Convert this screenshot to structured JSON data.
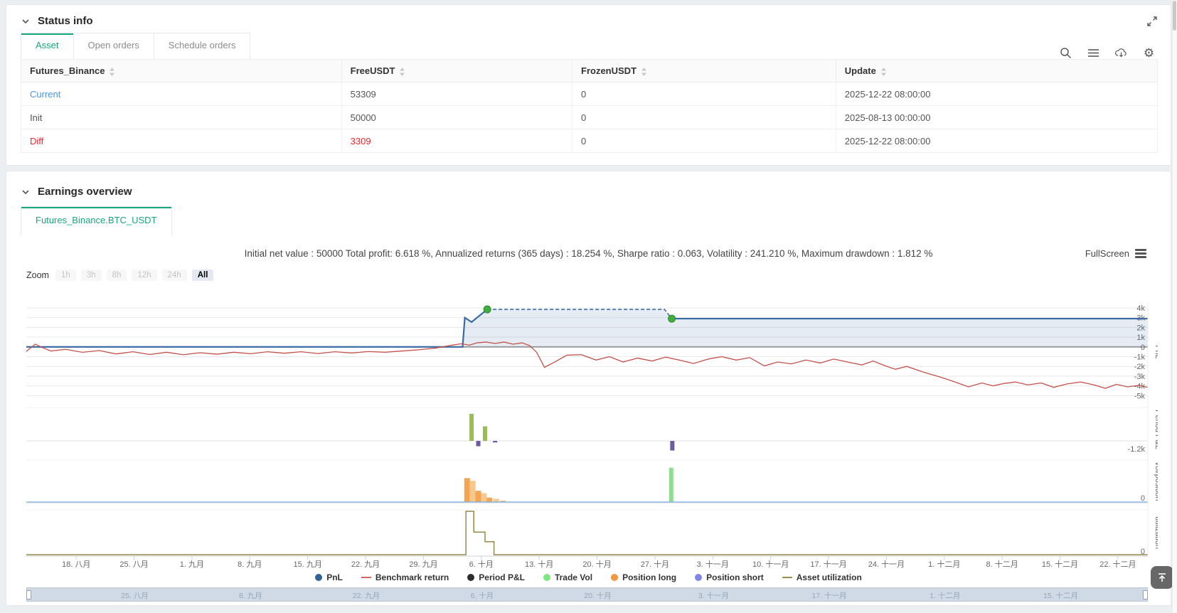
{
  "colors": {
    "accent_green": "#1aa47e",
    "link_blue": "#4a94e8",
    "alert_red": "#f5222d",
    "pnl_blue": "#3a6ba5",
    "pnl_fill": "rgba(58,107,165,0.13)",
    "benchmark_red": "#c4504a",
    "period_green": "#9bbb59",
    "period_purple": "#6e5aa0",
    "vol_orange": "#f2a654",
    "vol_orange_light": "#f7c78e",
    "trade_vol_green": "#8ce08c",
    "position_short_line": "#7cb5ec",
    "utilization_olive": "#948a4a",
    "marker_green": "#3fae3f",
    "navigator_bg": "#cfdae6"
  },
  "status_card": {
    "title": "Status info",
    "tabs": [
      {
        "label": "Asset"
      },
      {
        "label": "Open orders"
      },
      {
        "label": "Schedule orders"
      }
    ],
    "active_tab": "Asset",
    "toolbar_icons": [
      "search-icon",
      "menu-icon",
      "cloud-download-icon",
      "gear-icon"
    ],
    "table": {
      "columns": [
        "Futures_Binance",
        "FreeUSDT",
        "FrozenUSDT",
        "Update"
      ],
      "rows": [
        {
          "label": "Current",
          "free_usdt": "53309",
          "frozen_usdt": "0",
          "update": "2025-12-22 08:00:00"
        },
        {
          "label": "Init",
          "free_usdt": "50000",
          "frozen_usdt": "0",
          "update": "2025-08-13 00:00:00"
        },
        {
          "label": "Diff",
          "free_usdt": "3309",
          "frozen_usdt": "0",
          "update": "2025-12-22 08:00:00"
        }
      ]
    }
  },
  "earnings_card": {
    "title": "Earnings overview",
    "tab_label": "Futures_Binance.BTC_USDT",
    "stats_line": "Initial net value : 50000 Total profit: 6.618 %, Annualized returns (365 days) : 18.254 %, Sharpe ratio : 0.063, Volatility : 241.210 %, Maximum drawdown : 1.812 %",
    "fullscreen_label": "FullScreen",
    "zoom_label": "Zoom",
    "zoom_options": [
      "1h",
      "3h",
      "8h",
      "12h",
      "24h",
      "All"
    ],
    "zoom_active": "All"
  },
  "chart_data": {
    "type": "multi-panel time-series (line + area + bar + step), Highcharts-style with shared x axis",
    "x_axis": {
      "labels": [
        "18. 八月",
        "25. 八月",
        "1. 九月",
        "8. 九月",
        "15. 九月",
        "22. 九月",
        "29. 九月",
        "6. 十月",
        "13. 十月",
        "20. 十月",
        "27. 十月",
        "3. 十一月",
        "10. 十一月",
        "17. 十一月",
        "24. 十一月",
        "1. 十二月",
        "8. 十二月",
        "15. 十二月",
        "22. 十二月"
      ],
      "first_fraction": 0.0445,
      "step_fraction": 0.0516
    },
    "panels": [
      {
        "name": "PnL",
        "y_tick_labels": [
          "4k",
          "3k",
          "2k",
          "1k",
          "0",
          "-1k",
          "-2k",
          "-3k",
          "-4k",
          "-5k"
        ],
        "y_range_k": [
          -5,
          4
        ],
        "pnl_line": {
          "solid1": [
            [
              0,
              0
            ],
            [
              0.389,
              0
            ],
            [
              0.391,
              3.0
            ],
            [
              0.397,
              2.55
            ],
            [
              0.411,
              3.85
            ]
          ],
          "dashed": [
            [
              0.411,
              3.85
            ],
            [
              0.569,
              3.85
            ],
            [
              0.5755,
              2.9
            ]
          ],
          "solid2": [
            [
              0.5755,
              2.9
            ],
            [
              1,
              2.9
            ]
          ],
          "markers": [
            [
              0.411,
              3.85
            ],
            [
              0.5755,
              2.9
            ]
          ]
        },
        "benchmark_points": [
          [
            0,
            -0.45
          ],
          [
            0.008,
            0.28
          ],
          [
            0.015,
            -0.1
          ],
          [
            0.022,
            -0.42
          ],
          [
            0.035,
            -0.25
          ],
          [
            0.05,
            -0.55
          ],
          [
            0.065,
            -0.38
          ],
          [
            0.08,
            -0.72
          ],
          [
            0.095,
            -0.5
          ],
          [
            0.11,
            -0.78
          ],
          [
            0.125,
            -0.55
          ],
          [
            0.14,
            -0.8
          ],
          [
            0.155,
            -0.6
          ],
          [
            0.17,
            -0.75
          ],
          [
            0.185,
            -0.55
          ],
          [
            0.2,
            -0.7
          ],
          [
            0.215,
            -0.5
          ],
          [
            0.23,
            -0.65
          ],
          [
            0.245,
            -0.5
          ],
          [
            0.26,
            -0.68
          ],
          [
            0.275,
            -0.5
          ],
          [
            0.29,
            -0.62
          ],
          [
            0.305,
            -0.48
          ],
          [
            0.32,
            -0.55
          ],
          [
            0.335,
            -0.42
          ],
          [
            0.35,
            -0.3
          ],
          [
            0.365,
            -0.12
          ],
          [
            0.378,
            0.15
          ],
          [
            0.388,
            0.32
          ],
          [
            0.395,
            0.18
          ],
          [
            0.402,
            0.42
          ],
          [
            0.41,
            0.5
          ],
          [
            0.418,
            0.35
          ],
          [
            0.426,
            0.5
          ],
          [
            0.434,
            0.28
          ],
          [
            0.442,
            0.42
          ],
          [
            0.449,
            0.12
          ],
          [
            0.455,
            -0.55
          ],
          [
            0.462,
            -2.1
          ],
          [
            0.472,
            -1.5
          ],
          [
            0.482,
            -0.85
          ],
          [
            0.495,
            -0.8
          ],
          [
            0.508,
            -1.35
          ],
          [
            0.52,
            -1.0
          ],
          [
            0.532,
            -1.55
          ],
          [
            0.545,
            -1.15
          ],
          [
            0.558,
            -1.45
          ],
          [
            0.57,
            -1.05
          ],
          [
            0.582,
            -1.35
          ],
          [
            0.595,
            -1.7
          ],
          [
            0.608,
            -1.25
          ],
          [
            0.62,
            -1.0
          ],
          [
            0.633,
            -1.35
          ],
          [
            0.645,
            -1.1
          ],
          [
            0.658,
            -1.95
          ],
          [
            0.67,
            -1.55
          ],
          [
            0.682,
            -1.75
          ],
          [
            0.695,
            -1.35
          ],
          [
            0.708,
            -1.65
          ],
          [
            0.72,
            -1.25
          ],
          [
            0.732,
            -1.55
          ],
          [
            0.745,
            -1.85
          ],
          [
            0.755,
            -1.45
          ],
          [
            0.765,
            -1.9
          ],
          [
            0.775,
            -2.3
          ],
          [
            0.785,
            -2.0
          ],
          [
            0.8,
            -2.6
          ],
          [
            0.815,
            -3.1
          ],
          [
            0.828,
            -3.6
          ],
          [
            0.84,
            -4.1
          ],
          [
            0.852,
            -3.7
          ],
          [
            0.862,
            -4.0
          ],
          [
            0.872,
            -3.75
          ],
          [
            0.882,
            -3.6
          ],
          [
            0.893,
            -3.9
          ],
          [
            0.905,
            -3.7
          ],
          [
            0.916,
            -4.15
          ],
          [
            0.928,
            -3.8
          ],
          [
            0.94,
            -3.6
          ],
          [
            0.952,
            -3.9
          ],
          [
            0.962,
            -4.25
          ],
          [
            0.972,
            -3.85
          ],
          [
            0.982,
            -4.1
          ],
          [
            0.992,
            -3.95
          ],
          [
            1,
            -4.15
          ]
        ]
      },
      {
        "name": "Period P&L",
        "y_tick_label": "-1.2k",
        "bars": [
          {
            "x": 0.397,
            "v_k": 3.8,
            "series": "Period P&L positive"
          },
          {
            "x": 0.403,
            "v_k": -0.75,
            "series": "Period P&L negative"
          },
          {
            "x": 0.409,
            "v_k": 2.05,
            "series": "Period P&L positive"
          },
          {
            "x": 0.418,
            "v_k": -0.22,
            "series": "Period P&L negative"
          },
          {
            "x": 0.576,
            "v_k": -1.35,
            "series": "Period P&L negative"
          }
        ]
      },
      {
        "name": "vol/position",
        "y_tick_label": "0",
        "orange_bars": [
          {
            "x": 0.393,
            "v": 0.62
          },
          {
            "x": 0.398,
            "v": 0.55
          },
          {
            "x": 0.403,
            "v": 0.3
          },
          {
            "x": 0.408,
            "v": 0.24
          },
          {
            "x": 0.413,
            "v": 0.13
          },
          {
            "x": 0.419,
            "v": 0.1
          },
          {
            "x": 0.425,
            "v": 0.05
          }
        ],
        "green_bars": [
          {
            "x": 0.575,
            "v": 0.88
          }
        ],
        "zero_line": true
      },
      {
        "name": "utilization",
        "y_tick_label": "0",
        "steps": [
          [
            0,
            0
          ],
          [
            0.392,
            0
          ],
          [
            0.392,
            1
          ],
          [
            0.399,
            1
          ],
          [
            0.399,
            0.52
          ],
          [
            0.409,
            0.52
          ],
          [
            0.409,
            0.3
          ],
          [
            0.417,
            0.3
          ],
          [
            0.417,
            0
          ],
          [
            1,
            0
          ]
        ]
      }
    ]
  },
  "legend": {
    "items": [
      {
        "label": "PnL",
        "color": "#2f6497",
        "type": "circle"
      },
      {
        "label": "Benchmark return",
        "color": "#d26868",
        "type": "line"
      },
      {
        "label": "Period P&L",
        "color": "#2b2b2b",
        "type": "circle"
      },
      {
        "label": "Trade Vol",
        "color": "#7de87d",
        "type": "circle"
      },
      {
        "label": "Position long",
        "color": "#f2973f",
        "type": "circle"
      },
      {
        "label": "Position short",
        "color": "#8085e9",
        "type": "circle"
      },
      {
        "label": "Asset utilization",
        "color": "#9a8f53",
        "type": "line"
      }
    ]
  },
  "navigator": {
    "labels": [
      "25. 八月",
      "8. 九月",
      "22. 九月",
      "6. 十月",
      "20. 十月",
      "3. 十一月",
      "17. 十一月",
      "1. 十二月",
      "15. 十二月"
    ]
  }
}
